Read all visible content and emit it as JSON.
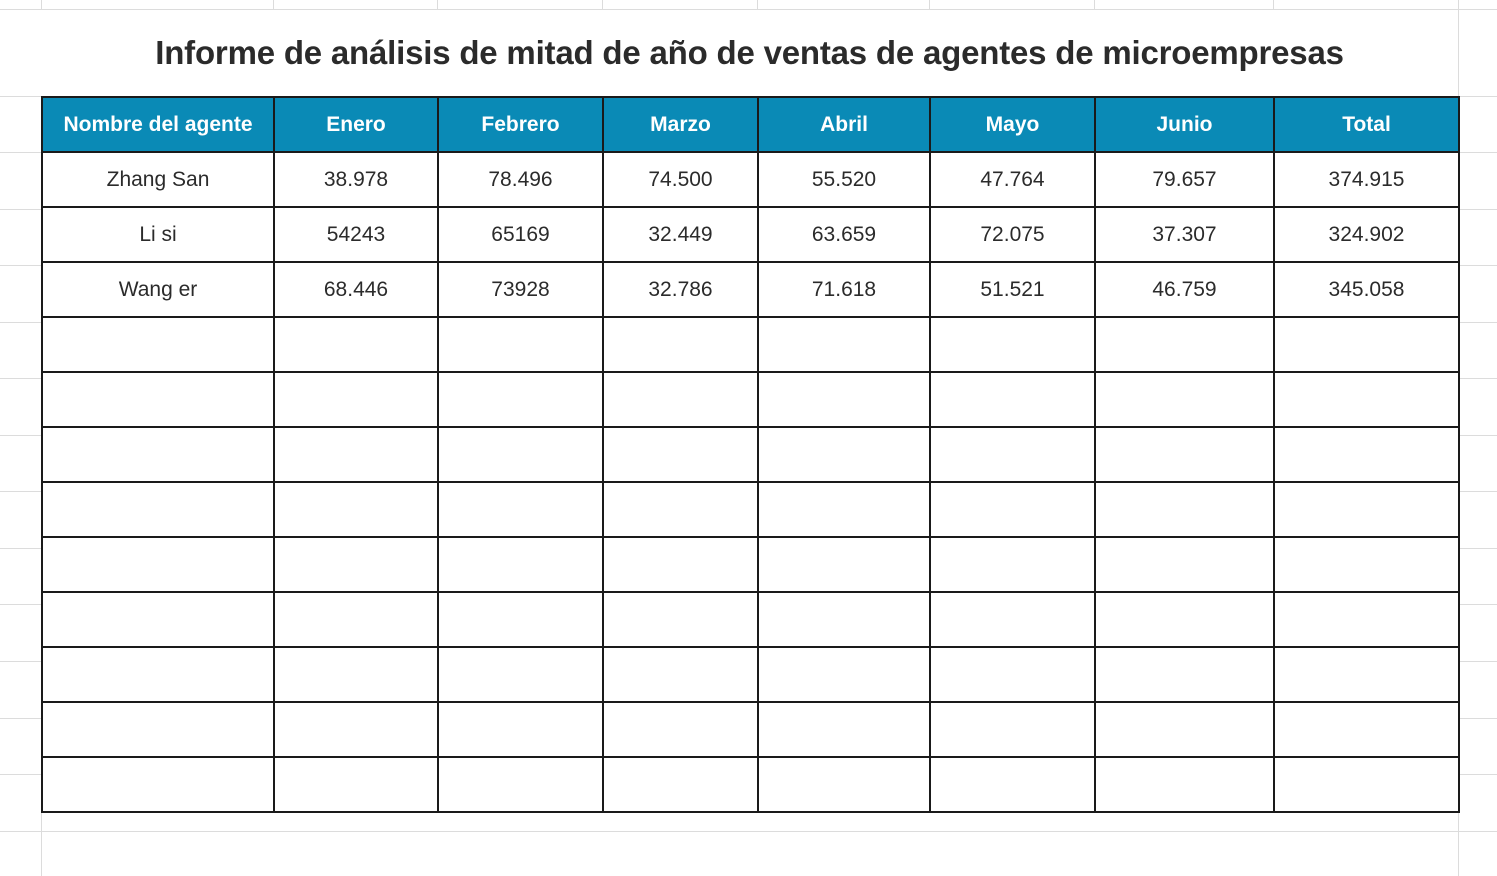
{
  "report": {
    "title": "Informe de análisis de mitad de año de ventas de agentes de microempresas",
    "headers": [
      "Nombre del agente",
      "Enero",
      "Febrero",
      "Marzo",
      "Abril",
      "Mayo",
      "Junio",
      "Total"
    ],
    "rows": [
      [
        "Zhang San",
        "38.978",
        "78.496",
        "74.500",
        "55.520",
        "47.764",
        "79.657",
        "374.915"
      ],
      [
        "Li si",
        "54243",
        "65169",
        "32.449",
        "63.659",
        "72.075",
        "37.307",
        "324.902"
      ],
      [
        "Wang er",
        "68.446",
        "73928",
        "32.786",
        "71.618",
        "51.521",
        "46.759",
        "345.058"
      ],
      [
        "",
        "",
        "",
        "",
        "",
        "",
        "",
        ""
      ],
      [
        "",
        "",
        "",
        "",
        "",
        "",
        "",
        ""
      ],
      [
        "",
        "",
        "",
        "",
        "",
        "",
        "",
        ""
      ],
      [
        "",
        "",
        "",
        "",
        "",
        "",
        "",
        ""
      ],
      [
        "",
        "",
        "",
        "",
        "",
        "",
        "",
        ""
      ],
      [
        "",
        "",
        "",
        "",
        "",
        "",
        "",
        ""
      ],
      [
        "",
        "",
        "",
        "",
        "",
        "",
        "",
        ""
      ],
      [
        "",
        "",
        "",
        "",
        "",
        "",
        "",
        ""
      ],
      [
        "",
        "",
        "",
        "",
        "",
        "",
        "",
        ""
      ]
    ]
  },
  "colors": {
    "header_background": "#0a8ab6",
    "header_text": "#ffffff",
    "cell_border": "#1a1a1a",
    "gridline": "#dcdcdc",
    "text": "#2b2b2b"
  }
}
